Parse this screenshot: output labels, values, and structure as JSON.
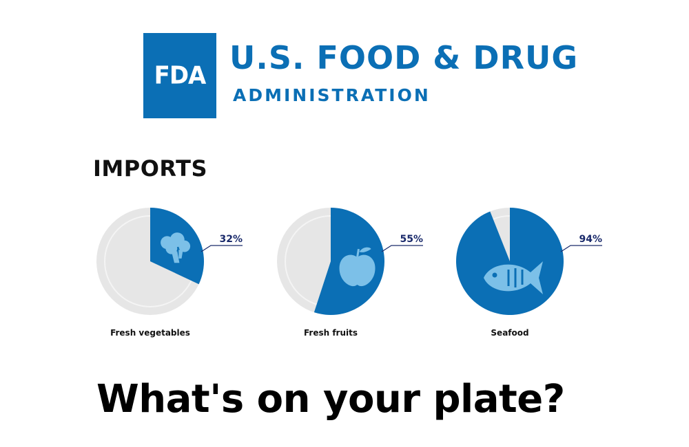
{
  "header": {
    "logo_text": "FDA",
    "agency_name": "U.S. FOOD & DRUG",
    "agency_sub": "ADMINISTRATION"
  },
  "section_title": "IMPORTS",
  "tagline": "What's on your plate?",
  "colors": {
    "brand_blue": "#0b6fb5",
    "plate_gray": "#e6e6e6",
    "label_navy": "#1a2a6b"
  },
  "chart_data": {
    "type": "pie",
    "title": "IMPORTS",
    "categories": [
      "Fresh vegetables",
      "Fresh fruits",
      "Seafood"
    ],
    "values": [
      32,
      55,
      94
    ],
    "value_labels": [
      "32%",
      "55%",
      "94%"
    ],
    "icons": [
      "broccoli-icon",
      "apple-icon",
      "fish-icon"
    ],
    "unit": "%"
  }
}
